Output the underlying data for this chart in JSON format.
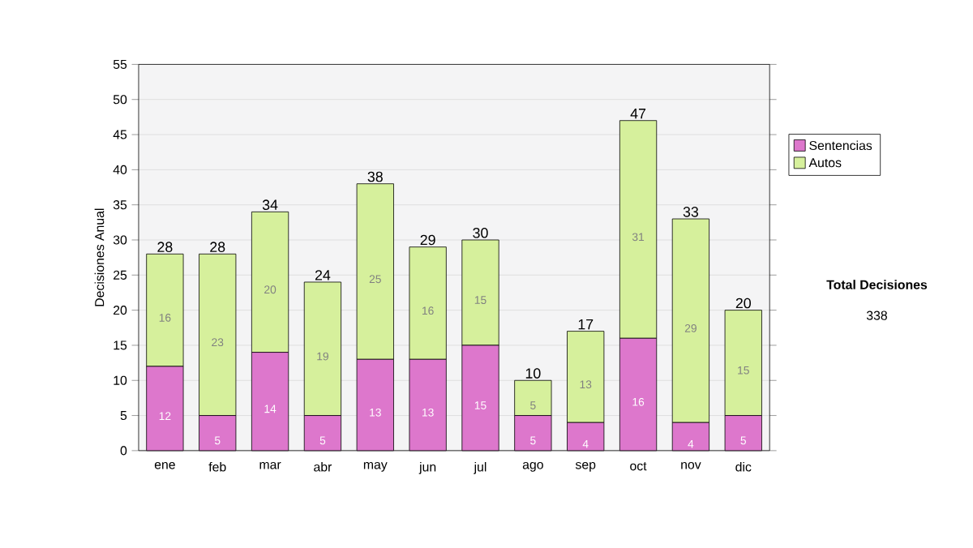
{
  "chart_data": {
    "type": "bar",
    "stacked": true,
    "ylabel": "Decisiones Anual",
    "categories": [
      "ene",
      "feb",
      "mar",
      "abr",
      "may",
      "jun",
      "jul",
      "ago",
      "sep",
      "oct",
      "nov",
      "dic"
    ],
    "series": [
      {
        "name": "Sentencias",
        "color": "#dd77cc",
        "values": [
          12,
          5,
          14,
          5,
          13,
          13,
          15,
          5,
          4,
          16,
          4,
          5
        ]
      },
      {
        "name": "Autos",
        "color": "#d6f09c",
        "values": [
          16,
          23,
          20,
          19,
          25,
          16,
          15,
          5,
          13,
          31,
          29,
          15
        ]
      }
    ],
    "totals": [
      "28",
      "28",
      "34",
      "24",
      "38",
      "29",
      "30",
      "10",
      "17",
      "47",
      "33",
      "20"
    ],
    "data_labels": true,
    "ylim": [
      0,
      55
    ],
    "yticks": [
      0,
      5,
      10,
      15,
      20,
      25,
      30,
      35,
      40,
      45,
      50,
      55
    ],
    "grid": "y",
    "legend": "right",
    "annotations": [
      "Total Decisiones",
      "338"
    ]
  }
}
